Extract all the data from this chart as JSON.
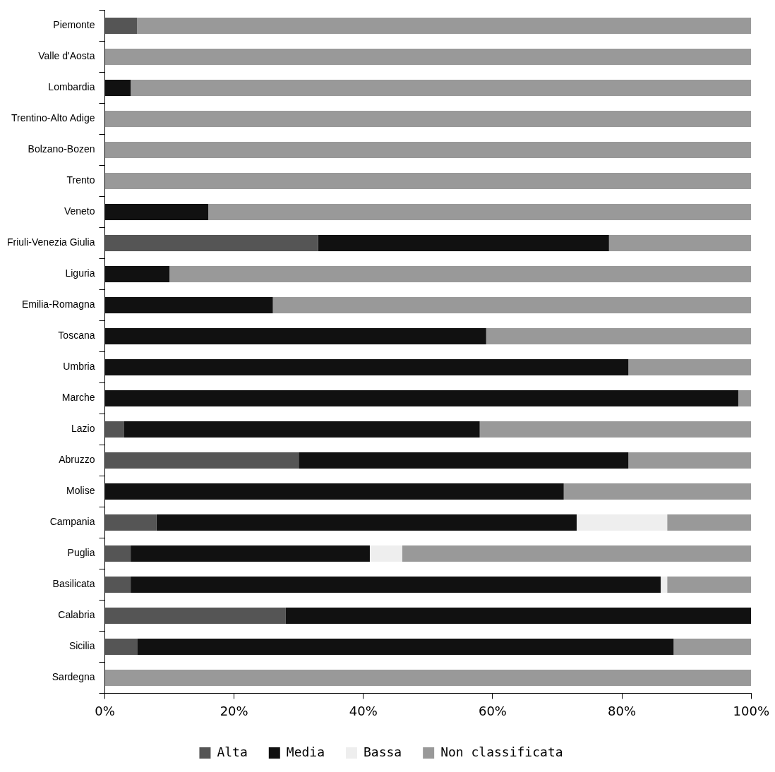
{
  "chart_data": {
    "type": "bar",
    "orientation": "horizontal",
    "stacked": true,
    "categories": [
      "Piemonte",
      "Valle d'Aosta",
      "Lombardia",
      "Trentino-Alto Adige",
      "Bolzano-Bozen",
      "Trento",
      "Veneto",
      "Friuli-Venezia Giulia",
      "Liguria",
      "Emilia-Romagna",
      "Toscana",
      "Umbria",
      "Marche",
      "Lazio",
      "Abruzzo",
      "Molise",
      "Campania",
      "Puglia",
      "Basilicata",
      "Calabria",
      "Sicilia",
      "Sardegna"
    ],
    "series": [
      {
        "name": "Alta",
        "color": "#555555",
        "values": [
          5,
          0,
          0,
          0,
          0,
          0,
          0,
          33,
          0,
          0,
          0,
          0,
          0,
          3,
          30,
          0,
          8,
          4,
          4,
          28,
          5,
          0
        ]
      },
      {
        "name": "Media",
        "color": "#111111",
        "values": [
          0,
          0,
          4,
          0,
          0,
          0,
          16,
          45,
          10,
          26,
          59,
          81,
          98,
          55,
          51,
          71,
          65,
          37,
          82,
          72,
          83,
          0
        ]
      },
      {
        "name": "Bassa",
        "color": "#eeeeee",
        "values": [
          0,
          0,
          0,
          0,
          0,
          0,
          0,
          0,
          0,
          0,
          0,
          0,
          0,
          0,
          0,
          0,
          14,
          5,
          1,
          0,
          0,
          0
        ]
      },
      {
        "name": "Non classificata",
        "color": "#999999",
        "values": [
          95,
          100,
          96,
          100,
          100,
          100,
          84,
          22,
          90,
          74,
          41,
          19,
          2,
          42,
          19,
          29,
          13,
          54,
          13,
          0,
          12,
          100
        ]
      }
    ],
    "xlim": [
      0,
      100
    ],
    "xticks": [
      {
        "value": 0,
        "label": "0%"
      },
      {
        "value": 20,
        "label": "20%"
      },
      {
        "value": 40,
        "label": "40%"
      },
      {
        "value": 60,
        "label": "60%"
      },
      {
        "value": 80,
        "label": "80%"
      },
      {
        "value": 100,
        "label": "100%"
      }
    ],
    "legend": "bottom"
  }
}
